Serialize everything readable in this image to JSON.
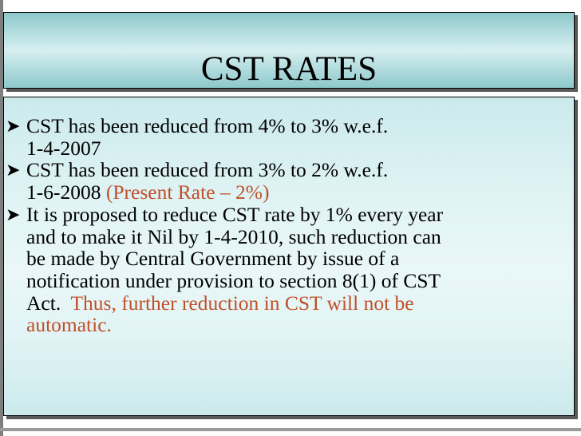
{
  "slide": {
    "title": "CST RATES",
    "bullet_icon": "arrow-bullet-icon",
    "accent_color": "#c0502a",
    "bullets": [
      {
        "line1": "CST has been reduced from 4% to 3% w.e.f.",
        "line2": "1-4-2007"
      },
      {
        "line1": "CST has been reduced from 3% to 2% w.e.f.",
        "line2_text": "1-6-2008 ",
        "line2_highlight": "(Present Rate – 2%)"
      },
      {
        "line1": "It is proposed to reduce CST rate by 1% every year",
        "line2": "and to make it Nil by 1-4-2010, such reduction can",
        "line3": "be made by Central Government by issue of a",
        "line4": "notification under provision to section 8(1) of CST",
        "line5_text": "Act.  ",
        "line5_highlight": "Thus, further reduction in CST will not be",
        "line6_highlight": "automatic."
      }
    ]
  }
}
